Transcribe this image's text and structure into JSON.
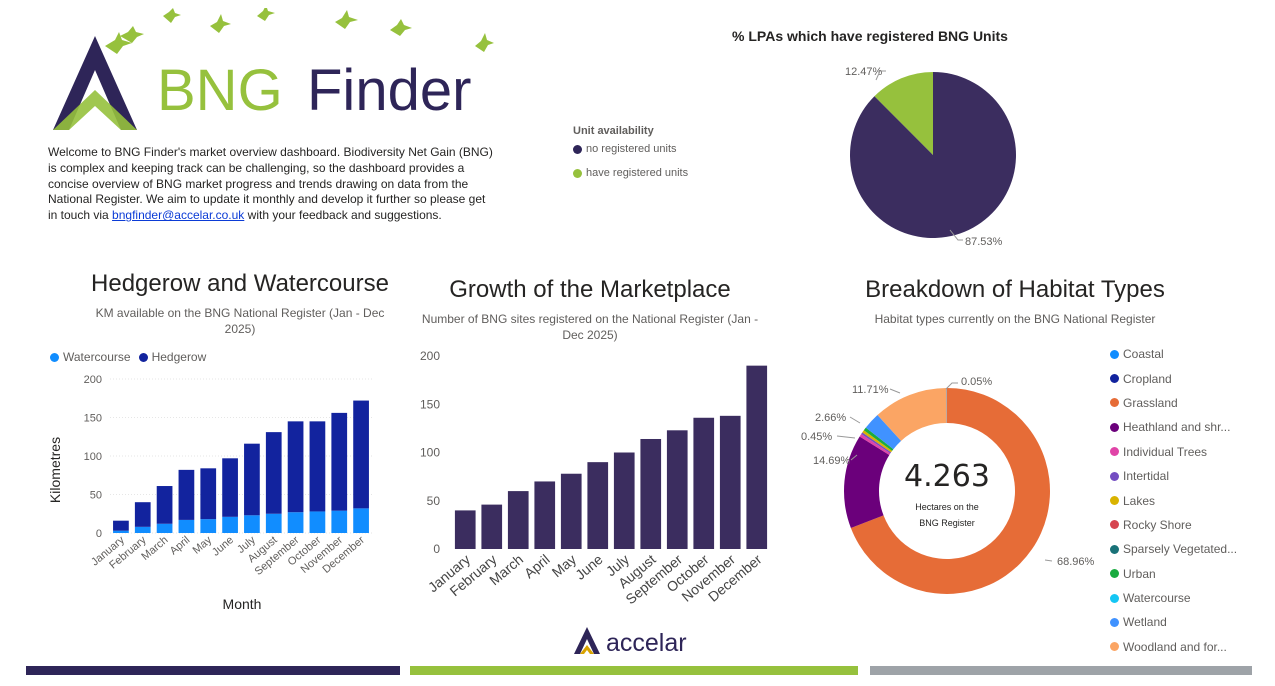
{
  "brand": {
    "logo_text_part1": "BNG",
    "logo_text_part2": "Finder",
    "colors": {
      "purple": "#2e2558",
      "green": "#96c13d"
    }
  },
  "intro": {
    "text_before_link": "Welcome to BNG Finder's market overview dashboard. Biodiversity Net Gain (BNG) is complex and keeping track can be challenging, so the dashboard provides a concise overview of BNG market progress and trends drawing on data from the National Register. We aim to update it monthly and develop it further so please get in touch via ",
    "link_text": "bngfinder@accelar.co.uk",
    "text_after_link": " with your feedback and suggestions."
  },
  "lpa_chart": {
    "title": "% LPAs which have registered BNG Units",
    "legend_title": "Unit availability",
    "legend": [
      "no registered units",
      "have registered units"
    ],
    "labels": [
      "87.53%",
      "12.47%"
    ]
  },
  "hedgerow_chart": {
    "title": "Hedgerow and Watercourse",
    "subtitle_line1": "KM available on the BNG National Register (Jan - Dec",
    "subtitle_line2": "2025)",
    "legend": [
      "Watercourse",
      "Hedgerow"
    ],
    "xlabel": "Month",
    "ylabel": "Kilometres",
    "yticks": [
      "0",
      "50",
      "100",
      "150",
      "200"
    ]
  },
  "growth_chart": {
    "title": "Growth of the Marketplace",
    "subtitle_line1": "Number of BNG sites registered on the National Register (Jan -",
    "subtitle_line2": "Dec 2025)",
    "yticks": [
      "0",
      "50",
      "100",
      "150",
      "200"
    ]
  },
  "habitat_chart": {
    "title": "Breakdown of Habitat Types",
    "subtitle": "Habitat types currently on the BNG National Register",
    "center_value": "4.263",
    "center_label_line1": "Hectares on the",
    "center_label_line2": "BNG Register",
    "legend": [
      "Coastal",
      "Cropland",
      "Grassland",
      "Heathland and shr...",
      "Individual Trees",
      "Intertidal",
      "Lakes",
      "Rocky Shore",
      "Sparsely Vegetated...",
      "Urban",
      "Watercourse",
      "Wetland",
      "Woodland and for..."
    ],
    "legend_colors": [
      "#118dff",
      "#12239e",
      "#e66c37",
      "#6b007b",
      "#e044a7",
      "#744ec2",
      "#d9b300",
      "#d64550",
      "#197278",
      "#1aab40",
      "#15c6f4",
      "#4092ff",
      "#fba564"
    ],
    "labels": [
      "68.96%",
      "14.69%",
      "0.45%",
      "2.66%",
      "11.71%",
      "0.05%"
    ]
  },
  "footer": {
    "brand": "accelar"
  },
  "chart_data": [
    {
      "type": "pie",
      "title": "% LPAs which have registered BNG Units",
      "categories": [
        "no registered units",
        "have registered units"
      ],
      "values": [
        87.53,
        12.47
      ],
      "colors": [
        "#3b2d5f",
        "#96c13d"
      ],
      "legend_position": "left"
    },
    {
      "type": "bar",
      "stacked": true,
      "title": "Hedgerow and Watercourse",
      "subtitle": "KM available on the BNG National Register (Jan - Dec 2025)",
      "xlabel": "Month",
      "ylabel": "Kilometres",
      "categories": [
        "January",
        "February",
        "March",
        "April",
        "May",
        "June",
        "July",
        "August",
        "September",
        "October",
        "November",
        "December"
      ],
      "series": [
        {
          "name": "Watercourse",
          "values": [
            3,
            8,
            12,
            17,
            18,
            21,
            23,
            25,
            27,
            28,
            29,
            32
          ],
          "color": "#118dff"
        },
        {
          "name": "Hedgerow",
          "values": [
            13,
            32,
            49,
            65,
            66,
            76,
            93,
            106,
            118,
            117,
            127,
            140
          ],
          "color": "#12239e"
        }
      ],
      "ylim": [
        0,
        200
      ],
      "legend_position": "top-left",
      "grid": true
    },
    {
      "type": "bar",
      "title": "Growth of the Marketplace",
      "subtitle": "Number of BNG sites registered on the National Register (Jan - Dec 2025)",
      "categories": [
        "January",
        "February",
        "March",
        "April",
        "May",
        "June",
        "July",
        "August",
        "September",
        "October",
        "November",
        "December"
      ],
      "values": [
        40,
        46,
        60,
        70,
        78,
        90,
        100,
        114,
        123,
        136,
        138,
        190
      ],
      "color": "#3b2d5f",
      "ylim": [
        0,
        200
      ],
      "grid": false
    },
    {
      "type": "pie",
      "donut": true,
      "title": "Breakdown of Habitat Types",
      "subtitle": "Habitat types currently on the BNG National Register",
      "categories": [
        "Grassland",
        "Heathland and shr...",
        "Individual Trees",
        "Intertidal",
        "Lakes",
        "Urban",
        "Wetland",
        "Woodland and for...",
        "Coastal"
      ],
      "values": [
        68.96,
        14.69,
        0.45,
        0.3,
        0.4,
        0.5,
        2.66,
        11.71,
        0.05
      ],
      "colors": [
        "#e66c37",
        "#6b007b",
        "#e044a7",
        "#744ec2",
        "#d9b300",
        "#1aab40",
        "#4092ff",
        "#fba564",
        "#118dff"
      ],
      "center_value": "4.263",
      "legend_position": "right"
    }
  ]
}
